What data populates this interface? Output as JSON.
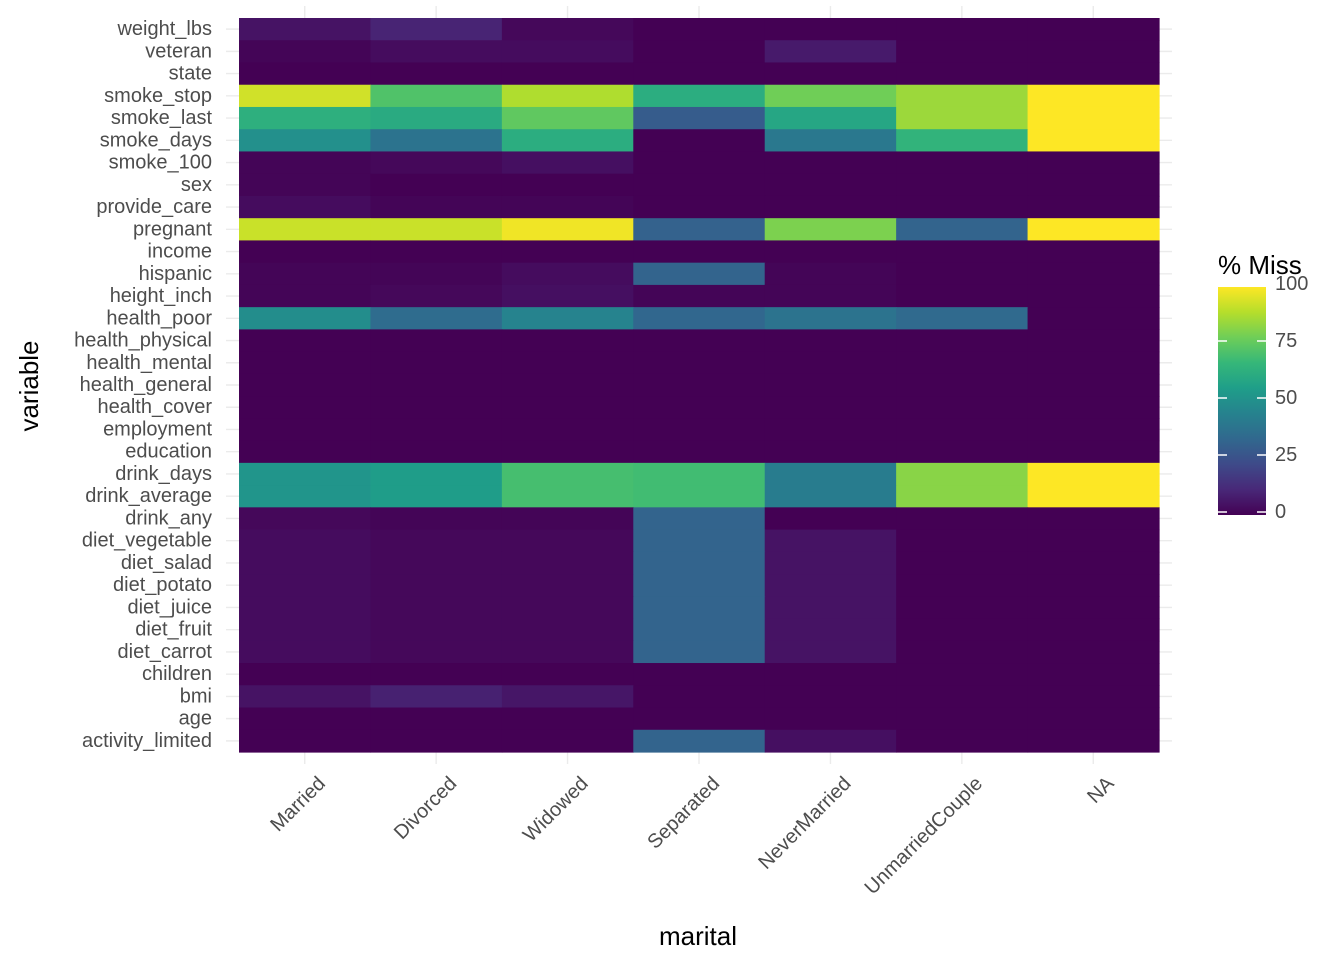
{
  "chart_data": {
    "type": "heatmap",
    "title": "",
    "xlabel": "marital",
    "ylabel": "variable",
    "x_categories": [
      "Married",
      "Divorced",
      "Widowed",
      "Separated",
      "NeverMarried",
      "UnmarriedCouple",
      "NA"
    ],
    "y_categories": [
      "weight_lbs",
      "veteran",
      "state",
      "smoke_stop",
      "smoke_last",
      "smoke_days",
      "smoke_100",
      "sex",
      "provide_care",
      "pregnant",
      "income",
      "hispanic",
      "height_inch",
      "health_poor",
      "health_physical",
      "health_mental",
      "health_general",
      "health_cover",
      "employment",
      "education",
      "drink_days",
      "drink_average",
      "drink_any",
      "diet_vegetable",
      "diet_salad",
      "diet_potato",
      "diet_juice",
      "diet_fruit",
      "diet_carrot",
      "children",
      "bmi",
      "age",
      "activity_limited"
    ],
    "values": [
      [
        5,
        10,
        2,
        0,
        0,
        0,
        0
      ],
      [
        1,
        3,
        3,
        0,
        7,
        0,
        0
      ],
      [
        0,
        0,
        0,
        0,
        0,
        0,
        0
      ],
      [
        93,
        72,
        88,
        62,
        78,
        85,
        100
      ],
      [
        63,
        61,
        75,
        29,
        59,
        85,
        100
      ],
      [
        50,
        38,
        62,
        0,
        40,
        65,
        100
      ],
      [
        1,
        2,
        4,
        0,
        0,
        0,
        0
      ],
      [
        1,
        0,
        0,
        0,
        0,
        0,
        0
      ],
      [
        3,
        1,
        1,
        0,
        0,
        0,
        0
      ],
      [
        92,
        92,
        98,
        31,
        80,
        32,
        100
      ],
      [
        0,
        0,
        0,
        0,
        0,
        0,
        0
      ],
      [
        1,
        1,
        3,
        32,
        1,
        0,
        0
      ],
      [
        1,
        2,
        4,
        1,
        1,
        0,
        0
      ],
      [
        49,
        35,
        45,
        33,
        38,
        34,
        0
      ],
      [
        0,
        0,
        0,
        0,
        0,
        0,
        0
      ],
      [
        0,
        0,
        0,
        0,
        0,
        0,
        0
      ],
      [
        0,
        0,
        0,
        0,
        0,
        0,
        0
      ],
      [
        0,
        0,
        0,
        0,
        0,
        0,
        0
      ],
      [
        0,
        0,
        0,
        0,
        0,
        0,
        0
      ],
      [
        0,
        0,
        0,
        0,
        0,
        0,
        0
      ],
      [
        52,
        55,
        70,
        69,
        42,
        82,
        100
      ],
      [
        52,
        55,
        70,
        69,
        42,
        82,
        100
      ],
      [
        2,
        1,
        1,
        32,
        0,
        0,
        0
      ],
      [
        3,
        2,
        2,
        32,
        5,
        0,
        0
      ],
      [
        3,
        2,
        2,
        32,
        5,
        0,
        0
      ],
      [
        3,
        2,
        2,
        32,
        5,
        0,
        0
      ],
      [
        3,
        2,
        2,
        32,
        5,
        0,
        0
      ],
      [
        3,
        2,
        2,
        32,
        5,
        0,
        0
      ],
      [
        3,
        2,
        2,
        32,
        5,
        0,
        0
      ],
      [
        0,
        0,
        0,
        0,
        0,
        0,
        0
      ],
      [
        5,
        9,
        6,
        0,
        0,
        0,
        0
      ],
      [
        0,
        0,
        0,
        0,
        0,
        0,
        0
      ],
      [
        0,
        0,
        0,
        32,
        4,
        0,
        0
      ]
    ],
    "value_range": [
      0,
      100
    ],
    "colorscale": "viridis",
    "legend": {
      "title": "% Miss",
      "ticks": [
        0,
        25,
        50,
        75,
        100
      ],
      "placement": "right"
    },
    "grid": true
  }
}
